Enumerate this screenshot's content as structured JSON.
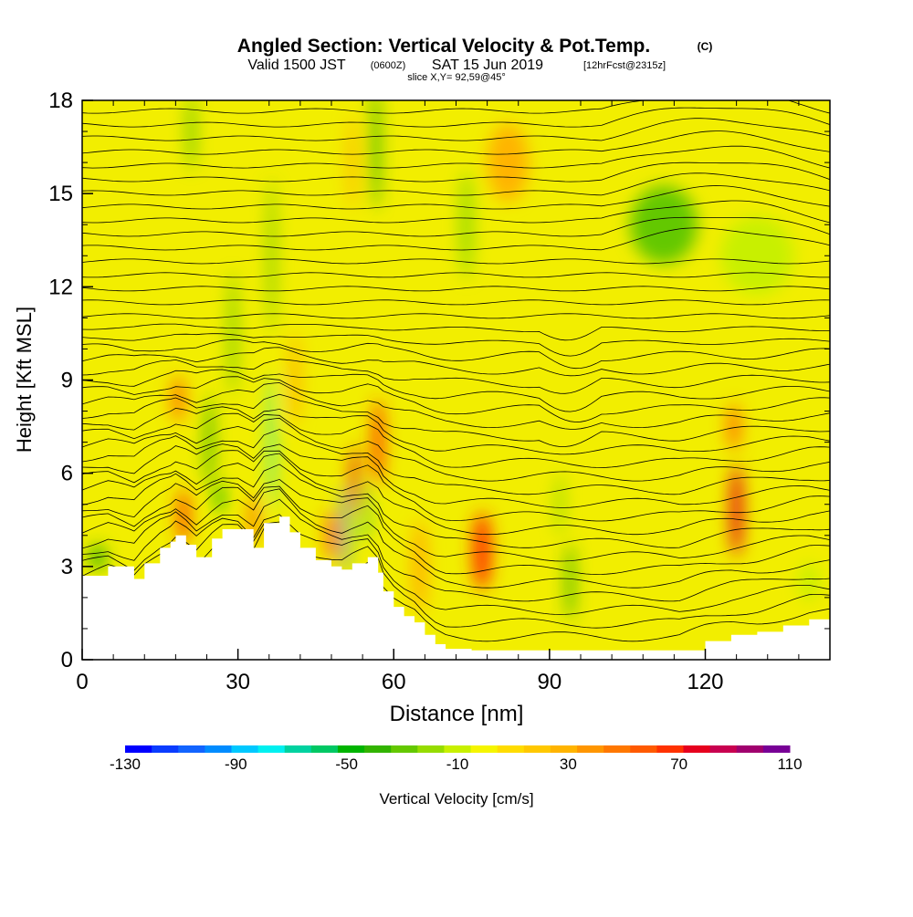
{
  "header": {
    "title": "Angled Section: Vertical Velocity & Pot.Temp.",
    "title_unit": "(C)",
    "valid_prefix": "Valid 1500 JST",
    "valid_utc": "(0600Z)",
    "valid_date": "SAT 15 Jun 2019",
    "forecast": "[12hrFcst@2315z]",
    "slice": "slice X,Y= 92,59@45°"
  },
  "chart_data": {
    "type": "heatmap",
    "xlabel": "Distance [nm]",
    "ylabel": "Height [Kft MSL]",
    "xlim": [
      0,
      144
    ],
    "ylim": [
      0,
      18
    ],
    "x_ticks": [
      0,
      30,
      60,
      90,
      120
    ],
    "y_ticks": [
      0,
      3,
      6,
      9,
      12,
      15,
      18
    ],
    "grid": false,
    "terrain": {
      "x": [
        0,
        5,
        10,
        12,
        15,
        17,
        18,
        20,
        22,
        25,
        27,
        30,
        33,
        35,
        38,
        40,
        42,
        45,
        48,
        50,
        52,
        55,
        57,
        58,
        60,
        62,
        64,
        66,
        68,
        70,
        75,
        80,
        85,
        90,
        95,
        100,
        105,
        110,
        115,
        120,
        125,
        130,
        135,
        140,
        144
      ],
      "height": [
        2.7,
        3.0,
        2.6,
        3.1,
        3.6,
        3.8,
        4.0,
        3.7,
        3.3,
        3.9,
        4.2,
        4.2,
        3.6,
        4.4,
        4.6,
        4.1,
        3.6,
        3.2,
        3.0,
        2.9,
        3.1,
        3.3,
        2.8,
        2.2,
        1.7,
        1.4,
        1.2,
        0.8,
        0.5,
        0.35,
        0.3,
        0.3,
        0.3,
        0.3,
        0.3,
        0.3,
        0.3,
        0.3,
        0.3,
        0.6,
        0.8,
        0.9,
        1.1,
        1.3,
        1.3
      ]
    },
    "colorbar": {
      "label": "Vertical Velocity [cm/s]",
      "tick_labels": [
        "-130",
        "-90",
        "-50",
        "-10",
        "30",
        "70",
        "110"
      ],
      "levels": [
        -130,
        -120,
        -110,
        -100,
        -90,
        -80,
        -70,
        -60,
        -50,
        -40,
        -30,
        -20,
        -10,
        0,
        10,
        20,
        30,
        40,
        50,
        60,
        70,
        80,
        90,
        100,
        110
      ],
      "colors": [
        "#0000ff",
        "#0a3cff",
        "#1264ff",
        "#008cff",
        "#00c8ff",
        "#00f0f0",
        "#00d2a0",
        "#00c864",
        "#00b400",
        "#32b400",
        "#64c800",
        "#96dc00",
        "#c8f000",
        "#f5f500",
        "#ffdc00",
        "#ffc800",
        "#ffb400",
        "#ff9600",
        "#ff7800",
        "#ff5a00",
        "#ff3200",
        "#e6001e",
        "#c80050",
        "#a0006e",
        "#780096"
      ]
    },
    "velocity_cells": [
      {
        "x": 19.5,
        "y": 4.6,
        "w": 2.0,
        "h": 1.8,
        "v": 75
      },
      {
        "x": 18.5,
        "y": 8.4,
        "w": 2.5,
        "h": 1.5,
        "v": 55
      },
      {
        "x": 24.5,
        "y": 7.0,
        "w": 1.5,
        "h": 3.0,
        "v": -35
      },
      {
        "x": 26.5,
        "y": 5.2,
        "w": 1.5,
        "h": 1.0,
        "v": -45
      },
      {
        "x": 29.0,
        "y": 10.5,
        "w": 1.4,
        "h": 4.0,
        "v": -30
      },
      {
        "x": 21.0,
        "y": 17.0,
        "w": 1.5,
        "h": 2.5,
        "v": -25
      },
      {
        "x": 33.0,
        "y": 4.5,
        "w": 1.5,
        "h": 1.6,
        "v": 60
      },
      {
        "x": 36.5,
        "y": 7.0,
        "w": 0.9,
        "h": 4.5,
        "v": -80
      },
      {
        "x": 36.5,
        "y": 13.0,
        "w": 1.2,
        "h": 5.0,
        "v": -30
      },
      {
        "x": 41.0,
        "y": 9.0,
        "w": 2.0,
        "h": 3.0,
        "v": 30
      },
      {
        "x": 48.0,
        "y": 4.0,
        "w": 1.6,
        "h": 1.6,
        "v": 70
      },
      {
        "x": 50.5,
        "y": 4.2,
        "w": 1.2,
        "h": 2.8,
        "v": -100
      },
      {
        "x": 52.5,
        "y": 5.8,
        "w": 1.4,
        "h": 2.2,
        "v": 80
      },
      {
        "x": 54.5,
        "y": 4.8,
        "w": 1.0,
        "h": 2.0,
        "v": -60
      },
      {
        "x": 57.0,
        "y": 7.0,
        "w": 2.0,
        "h": 2.8,
        "v": 75
      },
      {
        "x": 56.5,
        "y": 16.5,
        "w": 1.5,
        "h": 4.0,
        "v": -35
      },
      {
        "x": 52.0,
        "y": 16.0,
        "w": 1.5,
        "h": 3.0,
        "v": 30
      },
      {
        "x": 65.0,
        "y": 3.0,
        "w": 3.0,
        "h": 3.0,
        "v": 30
      },
      {
        "x": 77.0,
        "y": 3.5,
        "w": 3.5,
        "h": 2.5,
        "v": 70
      },
      {
        "x": 74.0,
        "y": 14.0,
        "w": 2.5,
        "h": 3.5,
        "v": -20
      },
      {
        "x": 94.0,
        "y": 2.5,
        "w": 1.5,
        "h": 2.5,
        "v": -35
      },
      {
        "x": 92.0,
        "y": 5.0,
        "w": 1.5,
        "h": 2.0,
        "v": -15
      },
      {
        "x": 82.0,
        "y": 16.0,
        "w": 8.0,
        "h": 2.5,
        "v": 30
      },
      {
        "x": 126.0,
        "y": 4.8,
        "w": 2.2,
        "h": 3.0,
        "v": 80
      },
      {
        "x": 125.5,
        "y": 7.5,
        "w": 2.5,
        "h": 1.5,
        "v": 55
      },
      {
        "x": 112.0,
        "y": 14.0,
        "w": 13.0,
        "h": 2.5,
        "v": -25
      },
      {
        "x": 130.0,
        "y": 13.0,
        "w": 14.0,
        "h": 2.5,
        "v": -10
      },
      {
        "x": 140.0,
        "y": 2.5,
        "w": 4.0,
        "h": 1.2,
        "v": -10
      },
      {
        "x": 3.0,
        "y": 3.3,
        "w": 3.0,
        "h": 0.8,
        "v": -40
      }
    ]
  }
}
